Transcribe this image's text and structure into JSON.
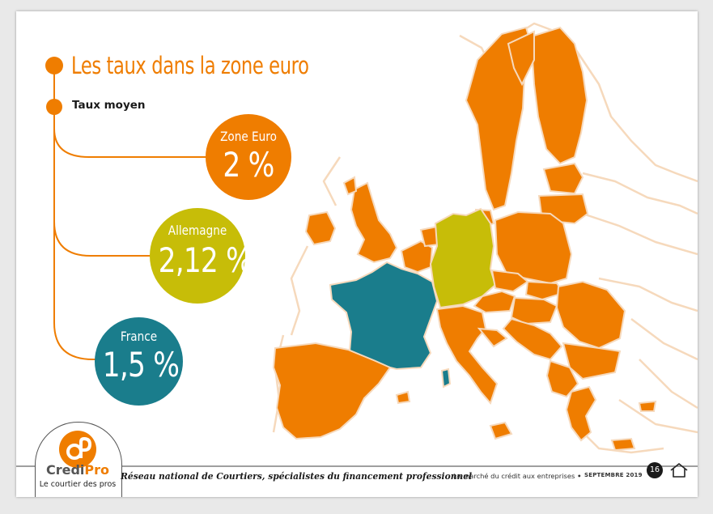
{
  "title": "Les taux dans la zone euro",
  "subtitle": "Taux moyen",
  "rates": [
    {
      "label": "Zone Euro",
      "value": "2 %",
      "color": "#ef7d00"
    },
    {
      "label": "Allemagne",
      "value": "2,12 %",
      "color": "#c7bd08"
    },
    {
      "label": "France",
      "value": "1,5 %",
      "color": "#1a7d8c"
    }
  ],
  "map_colors": {
    "eurozone": "#ef7d00",
    "germany": "#c7bd08",
    "france": "#1a7d8c",
    "outline": "#f6d9bc"
  },
  "footer": {
    "logo_name_a": "Credi",
    "logo_name_b": "Pro",
    "logo_tagline": "Le courtier des pros",
    "tagline": "Réseau national de Courtiers, spécialistes du financement professionnel",
    "document_title": "Le marché du crédit aux entreprises",
    "separator": " • ",
    "document_date": "SEPTEMBRE 2019",
    "page_number": "16",
    "home_icon": "home-icon"
  }
}
